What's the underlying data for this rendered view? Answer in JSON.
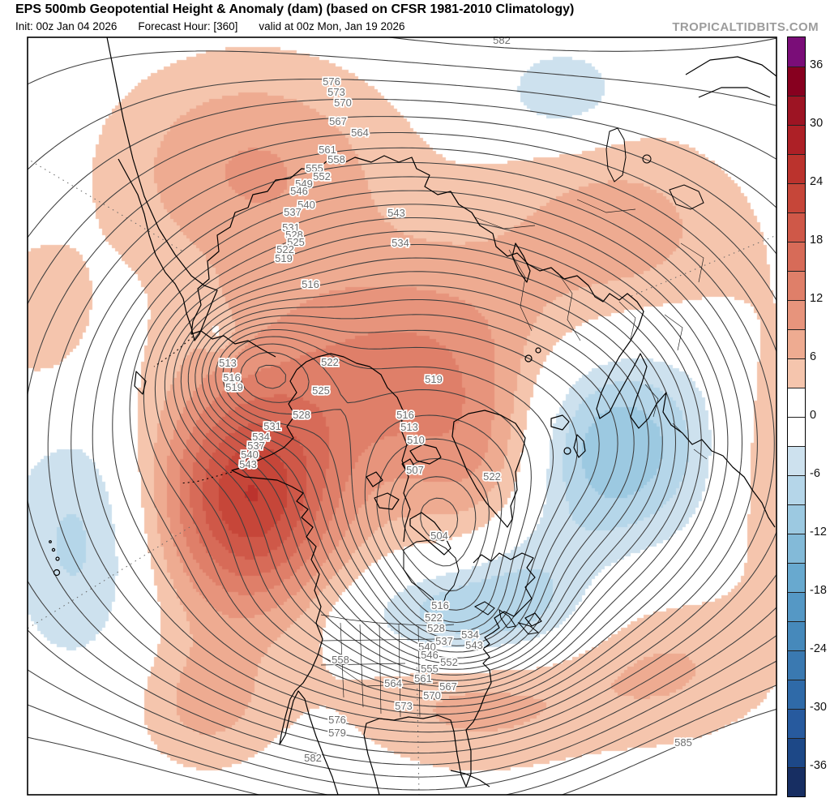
{
  "header": {
    "title": "EPS 500mb Geopotential Height & Anomaly (dam) (based on CFSR 1981-2010 Climatology)",
    "init_label": "Init: 00z Jan 04 2026",
    "forecast_hour_label": "Forecast Hour: [360]",
    "valid_label": "valid at 00z Mon, Jan 19 2026",
    "watermark": "TROPICALTIDBITS.COM"
  },
  "chart_data": {
    "type": "contour-map",
    "title": "EPS 500mb Geopotential Height & Anomaly (dam)",
    "units": "dam",
    "projection": "Northern Hemisphere polar stereographic",
    "contour_interval": 3,
    "contour_level_min": 504,
    "contour_level_max": 585,
    "contour_labels": [
      [
        582,
        619,
        50
      ],
      [
        576,
        409,
        101
      ],
      [
        573,
        415,
        114
      ],
      [
        570,
        423,
        127
      ],
      [
        567,
        417,
        150
      ],
      [
        564,
        444,
        164
      ],
      [
        561,
        404,
        185
      ],
      [
        558,
        415,
        197
      ],
      [
        555,
        388,
        208
      ],
      [
        552,
        397,
        218
      ],
      [
        549,
        375,
        227
      ],
      [
        546,
        369,
        236
      ],
      [
        543,
        489,
        263
      ],
      [
        540,
        378,
        253
      ],
      [
        537,
        361,
        262
      ],
      [
        534,
        494,
        300
      ],
      [
        531,
        359,
        281
      ],
      [
        528,
        363,
        290
      ],
      [
        525,
        365,
        299
      ],
      [
        522,
        352,
        308
      ],
      [
        519,
        350,
        319
      ],
      [
        516,
        383,
        351
      ],
      [
        513,
        281,
        448
      ],
      [
        516,
        286,
        466
      ],
      [
        519,
        289,
        478
      ],
      [
        522,
        407,
        447
      ],
      [
        525,
        396,
        482
      ],
      [
        528,
        372,
        512
      ],
      [
        531,
        336,
        526
      ],
      [
        534,
        322,
        539
      ],
      [
        537,
        316,
        550
      ],
      [
        540,
        308,
        561
      ],
      [
        543,
        306,
        573
      ],
      [
        519,
        535,
        468
      ],
      [
        516,
        500,
        512
      ],
      [
        513,
        505,
        527
      ],
      [
        510,
        513,
        543
      ],
      [
        507,
        512,
        580
      ],
      [
        504,
        542,
        661
      ],
      [
        522,
        607,
        588
      ],
      [
        516,
        543,
        747
      ],
      [
        522,
        535,
        762
      ],
      [
        528,
        538,
        775
      ],
      [
        534,
        580,
        783
      ],
      [
        537,
        548,
        791
      ],
      [
        540,
        527,
        798
      ],
      [
        543,
        585,
        796
      ],
      [
        546,
        530,
        808
      ],
      [
        552,
        554,
        817
      ],
      [
        555,
        530,
        825
      ],
      [
        558,
        420,
        814
      ],
      [
        561,
        522,
        837
      ],
      [
        564,
        485,
        843
      ],
      [
        567,
        553,
        847
      ],
      [
        570,
        533,
        858
      ],
      [
        573,
        498,
        871
      ],
      [
        576,
        416,
        888
      ],
      [
        579,
        416,
        904
      ],
      [
        582,
        386,
        935
      ],
      [
        585,
        843,
        916
      ]
    ],
    "height_field_components": [
      {
        "x": 0.52,
        "y": 0.55,
        "a": -68,
        "rx": 0.42,
        "ry": 0.37
      },
      {
        "x": 0.55,
        "y": 0.645,
        "a": -16,
        "rx": 0.105,
        "ry": 0.09
      },
      {
        "x": 0.585,
        "y": 0.775,
        "a": -21,
        "rx": 0.115,
        "ry": 0.085
      },
      {
        "x": 0.3,
        "y": 0.44,
        "a": -24,
        "rx": 0.095,
        "ry": 0.08
      },
      {
        "x": 0.8,
        "y": 0.52,
        "a": -8,
        "rx": 0.15,
        "ry": 0.17
      },
      {
        "x": 0.295,
        "y": 0.625,
        "a": 9,
        "rx": 0.13,
        "ry": 0.12
      },
      {
        "x": 0.13,
        "y": 1.1,
        "a": 9,
        "rx": 0.34,
        "ry": 0.26
      },
      {
        "x": 0.93,
        "y": 1.02,
        "a": 13,
        "rx": 0.3,
        "ry": 0.22
      },
      {
        "x": 0.6,
        "y": -0.1,
        "a": 11,
        "rx": 0.38,
        "ry": 0.24
      },
      {
        "x": 0.45,
        "y": 1.12,
        "a": 12,
        "rx": 0.45,
        "ry": 0.18
      }
    ],
    "anomaly_centers": [
      {
        "x": 0.295,
        "y": 0.615,
        "a": 14,
        "rx": 0.105,
        "ry": 0.13
      },
      {
        "x": 0.295,
        "y": 0.6,
        "a": 9,
        "rx": 0.175,
        "ry": 0.21
      },
      {
        "x": 0.52,
        "y": 0.44,
        "a": 12,
        "rx": 0.21,
        "ry": 0.155
      },
      {
        "x": 0.615,
        "y": 0.585,
        "a": 7,
        "rx": 0.1,
        "ry": 0.13
      },
      {
        "x": 0.3,
        "y": 0.17,
        "a": 9,
        "rx": 0.2,
        "ry": 0.15
      },
      {
        "x": 0.79,
        "y": 0.265,
        "a": 8,
        "rx": 0.18,
        "ry": 0.145
      },
      {
        "x": 0.6,
        "y": 0.875,
        "a": 7,
        "rx": 0.17,
        "ry": 0.1
      },
      {
        "x": 1.0,
        "y": 0.56,
        "a": 6,
        "rx": 0.075,
        "ry": 0.2
      },
      {
        "x": 0.86,
        "y": 0.83,
        "a": 6,
        "rx": 0.145,
        "ry": 0.11
      },
      {
        "x": 0.235,
        "y": 0.885,
        "a": 6,
        "rx": 0.095,
        "ry": 0.09
      },
      {
        "x": 0.015,
        "y": 0.375,
        "a": 5,
        "rx": 0.075,
        "ry": 0.11
      },
      {
        "x": 0.075,
        "y": 0.66,
        "a": -8,
        "rx": 0.1,
        "ry": 0.17
      },
      {
        "x": 0.775,
        "y": 0.545,
        "a": -8,
        "rx": 0.115,
        "ry": 0.115
      },
      {
        "x": 0.77,
        "y": 0.5,
        "a": -6,
        "rx": 0.175,
        "ry": 0.175
      },
      {
        "x": 0.66,
        "y": 0.7,
        "a": -5,
        "rx": 0.09,
        "ry": 0.1
      },
      {
        "x": 0.575,
        "y": 0.765,
        "a": -10,
        "rx": 0.145,
        "ry": 0.068
      },
      {
        "x": 0.715,
        "y": 0.075,
        "a": -7,
        "rx": 0.08,
        "ry": 0.058
      },
      {
        "x": 0.255,
        "y": 0.39,
        "a": -4,
        "rx": 0.022,
        "ry": 0.027
      }
    ],
    "colorbar": {
      "tick_labels": [
        "36",
        "30",
        "24",
        "18",
        "12",
        "6",
        "0",
        "-6",
        "-12",
        "-18",
        "-24",
        "-30",
        "-36"
      ],
      "cell_colors_top_to_bottom": [
        "#7a0d78",
        "#87001f",
        "#9d1423",
        "#ad2026",
        "#bb332d",
        "#c64639",
        "#cf5848",
        "#d76b58",
        "#df7f69",
        "#e7947c",
        "#eeab91",
        "#f5c5ad",
        "#ffffff",
        "#ffffff",
        "#cde1ee",
        "#b5d6e9",
        "#9cc9e1",
        "#83bad8",
        "#68a9cf",
        "#5598c5",
        "#4689bb",
        "#3a79b1",
        "#2f6aa8",
        "#275a9e",
        "#1d4887",
        "#172e62"
      ]
    }
  }
}
